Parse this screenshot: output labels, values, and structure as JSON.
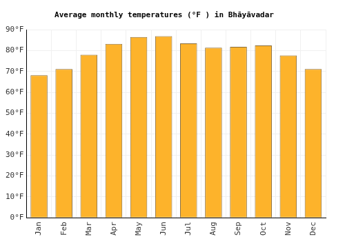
{
  "chart_data": {
    "type": "bar",
    "title": "Average monthly temperatures (°F ) in Bhāyāvadar",
    "categories": [
      "Jan",
      "Feb",
      "Mar",
      "Apr",
      "May",
      "Jun",
      "Jul",
      "Aug",
      "Sep",
      "Oct",
      "Nov",
      "Dec"
    ],
    "values": [
      68.2,
      71.2,
      78.0,
      83.2,
      86.5,
      86.9,
      83.5,
      81.4,
      81.8,
      82.5,
      77.7,
      71.2
    ],
    "color": "#fdb32b",
    "ylim": [
      0,
      90
    ],
    "yticks": [
      {
        "value": 0,
        "label": "0°F"
      },
      {
        "value": 10,
        "label": "10°F"
      },
      {
        "value": 20,
        "label": "20°F"
      },
      {
        "value": 30,
        "label": "30°F"
      },
      {
        "value": 40,
        "label": "40°F"
      },
      {
        "value": 50,
        "label": "50°F"
      },
      {
        "value": 60,
        "label": "60°F"
      },
      {
        "value": 70,
        "label": "70°F"
      },
      {
        "value": 80,
        "label": "80°F"
      },
      {
        "value": 90,
        "label": "90°F"
      }
    ],
    "grid": true
  }
}
